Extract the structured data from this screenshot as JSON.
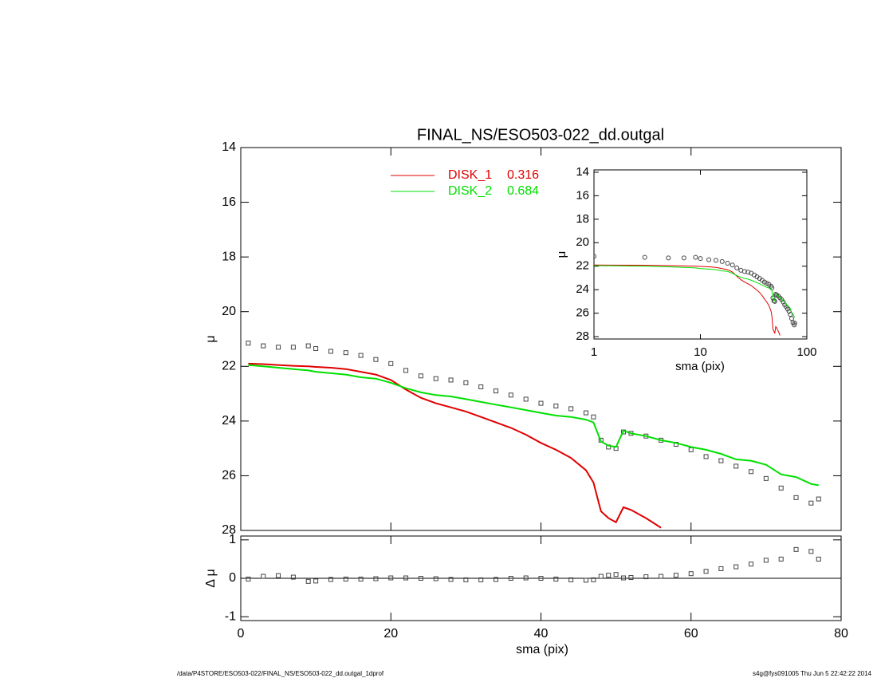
{
  "chart_data": [
    {
      "type": "line",
      "title": "FINAL_NS/ESO503-022_dd.outgal",
      "ylabel": "μ",
      "xlim": [
        0,
        80
      ],
      "xticks": [
        0,
        20,
        40,
        60,
        80
      ],
      "ylim": [
        14,
        28
      ],
      "yticks": [
        14,
        16,
        18,
        20,
        22,
        24,
        26,
        28
      ],
      "y_inverted": true,
      "x": [
        1,
        3,
        5,
        7,
        9,
        10,
        12,
        14,
        16,
        18,
        20,
        22,
        24,
        26,
        28,
        30,
        32,
        34,
        36,
        38,
        40,
        42,
        44,
        46,
        47,
        48,
        49,
        50,
        51,
        52,
        54,
        56,
        58,
        60,
        62,
        64,
        66,
        68,
        70,
        72,
        74,
        76,
        77
      ],
      "series": [
        {
          "color": "#444444",
          "marker": "square",
          "values": [
            21.15,
            21.25,
            21.3,
            21.3,
            21.25,
            21.35,
            21.45,
            21.5,
            21.6,
            21.75,
            21.9,
            22.15,
            22.35,
            22.45,
            22.5,
            22.6,
            22.75,
            22.9,
            23.05,
            23.2,
            23.35,
            23.45,
            23.55,
            23.7,
            23.85,
            24.7,
            24.95,
            25.0,
            24.4,
            24.45,
            24.55,
            24.7,
            24.85,
            25.05,
            25.3,
            25.45,
            25.65,
            25.85,
            26.1,
            26.45,
            26.8,
            27.0,
            26.85
          ]
        },
        {
          "name": "DISK_1",
          "fraction": 0.316,
          "color": "#e00000",
          "values": [
            21.9,
            21.92,
            21.95,
            21.98,
            22.0,
            22.02,
            22.05,
            22.1,
            22.2,
            22.3,
            22.5,
            22.85,
            23.15,
            23.35,
            23.5,
            23.65,
            23.85,
            24.05,
            24.25,
            24.5,
            24.8,
            25.05,
            25.35,
            25.8,
            26.25,
            27.3,
            27.55,
            27.7,
            27.15,
            27.25,
            27.55,
            27.9,
            null,
            null,
            null,
            null,
            null,
            null,
            null,
            null,
            null,
            null,
            null
          ]
        },
        {
          "name": "DISK_2",
          "fraction": 0.684,
          "color": "#00e000",
          "values": [
            21.95,
            22.0,
            22.05,
            22.1,
            22.15,
            22.2,
            22.25,
            22.3,
            22.4,
            22.45,
            22.6,
            22.8,
            22.95,
            23.05,
            23.1,
            23.2,
            23.3,
            23.4,
            23.5,
            23.6,
            23.7,
            23.8,
            23.85,
            23.95,
            24.05,
            24.75,
            24.9,
            24.95,
            24.35,
            24.45,
            24.55,
            24.7,
            24.8,
            24.95,
            25.05,
            25.2,
            25.4,
            25.45,
            25.6,
            25.95,
            26.05,
            26.3,
            26.35
          ]
        }
      ]
    },
    {
      "type": "line",
      "xlabel": "sma (pix)",
      "ylabel": "Δ μ",
      "xlim": [
        0,
        80
      ],
      "xticks": [
        0,
        20,
        40,
        60,
        80
      ],
      "ylim": [
        -1.1,
        1.1
      ],
      "yticks": [
        -1,
        0,
        1
      ],
      "reference_line": 0,
      "x": [
        1,
        3,
        5,
        7,
        9,
        10,
        12,
        14,
        16,
        18,
        20,
        22,
        24,
        26,
        28,
        30,
        32,
        34,
        36,
        38,
        40,
        42,
        44,
        46,
        47,
        48,
        49,
        50,
        51,
        52,
        54,
        56,
        58,
        60,
        62,
        64,
        66,
        68,
        70,
        72,
        74,
        76,
        77
      ],
      "series": [
        {
          "color": "#444444",
          "marker": "square",
          "values": [
            -0.02,
            0.05,
            0.07,
            0.03,
            -0.08,
            -0.07,
            -0.03,
            -0.02,
            -0.02,
            -0.01,
            0.01,
            0.01,
            0.0,
            -0.01,
            -0.03,
            -0.04,
            -0.04,
            -0.03,
            0.0,
            0.01,
            0.0,
            -0.02,
            -0.04,
            -0.05,
            -0.04,
            0.05,
            0.08,
            0.1,
            0.01,
            0.02,
            0.04,
            0.05,
            0.08,
            0.12,
            0.18,
            0.25,
            0.3,
            0.37,
            0.47,
            0.5,
            0.75,
            0.7,
            0.5
          ]
        }
      ]
    },
    {
      "type": "line",
      "xlabel": "sma (pix)",
      "ylabel": "μ",
      "log_x": true,
      "xlim": [
        1,
        100
      ],
      "xticks": [
        1,
        10,
        100
      ],
      "ylim": [
        13.8,
        28.2
      ],
      "yticks": [
        14,
        16,
        18,
        20,
        22,
        24,
        26,
        28
      ],
      "y_inverted": true,
      "x": [
        1,
        3,
        5,
        7,
        9,
        10,
        12,
        14,
        16,
        18,
        20,
        22,
        24,
        26,
        28,
        30,
        32,
        34,
        36,
        38,
        40,
        42,
        44,
        46,
        47,
        48,
        49,
        50,
        51,
        52,
        54,
        56,
        58,
        60,
        62,
        64,
        66,
        68,
        70,
        72,
        74,
        76,
        77
      ],
      "series": [
        {
          "color": "#444444",
          "marker": "circle",
          "values": [
            21.15,
            21.25,
            21.3,
            21.3,
            21.25,
            21.35,
            21.45,
            21.5,
            21.6,
            21.75,
            21.9,
            22.15,
            22.35,
            22.45,
            22.5,
            22.6,
            22.75,
            22.9,
            23.05,
            23.2,
            23.35,
            23.45,
            23.55,
            23.7,
            23.85,
            24.7,
            24.95,
            25.0,
            24.4,
            24.45,
            24.55,
            24.7,
            24.85,
            25.05,
            25.3,
            25.45,
            25.65,
            25.85,
            26.1,
            26.45,
            26.8,
            27.0,
            26.85
          ]
        },
        {
          "color": "#e00000",
          "values": [
            21.9,
            21.92,
            21.95,
            21.98,
            22.0,
            22.02,
            22.05,
            22.1,
            22.2,
            22.3,
            22.5,
            22.85,
            23.15,
            23.35,
            23.5,
            23.65,
            23.85,
            24.05,
            24.25,
            24.5,
            24.8,
            25.05,
            25.35,
            25.8,
            26.25,
            27.3,
            27.55,
            27.7,
            27.15,
            27.25,
            27.55,
            27.9,
            null,
            null,
            null,
            null,
            null,
            null,
            null,
            null,
            null,
            null,
            null
          ]
        },
        {
          "color": "#00e000",
          "values": [
            21.95,
            22.0,
            22.05,
            22.1,
            22.15,
            22.2,
            22.25,
            22.3,
            22.4,
            22.45,
            22.6,
            22.8,
            22.95,
            23.05,
            23.1,
            23.2,
            23.3,
            23.4,
            23.5,
            23.6,
            23.7,
            23.8,
            23.85,
            23.95,
            24.05,
            24.75,
            24.9,
            24.95,
            24.35,
            24.45,
            24.55,
            24.7,
            24.8,
            24.95,
            25.05,
            25.2,
            25.4,
            25.45,
            25.6,
            25.95,
            26.05,
            26.3,
            26.35
          ]
        }
      ]
    }
  ],
  "footer": {
    "left": "/data/P4STORE/ESO503-022/FINAL_NS/ESO503-022_dd.outgal_1dprof",
    "right": "s4g@fys091005  Thu Jun  5 22:42:22 2014"
  }
}
